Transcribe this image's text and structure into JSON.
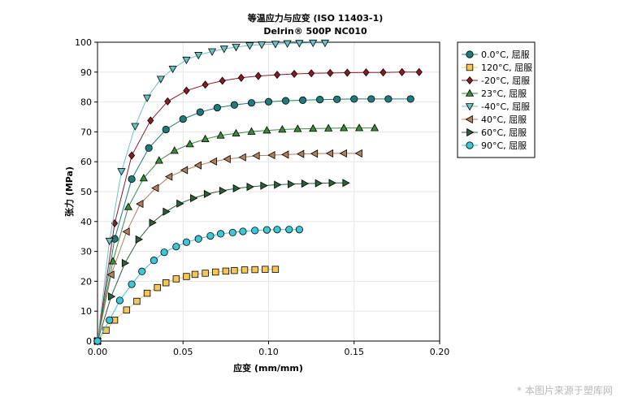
{
  "chart_data": {
    "type": "scatter",
    "title": "等温应力与应变 (ISO 11403-1)",
    "subtitle": "Delrin® 500P NC010",
    "xlabel": "应变 (mm/mm)",
    "ylabel": "张力 (MPa)",
    "xlim": [
      0,
      0.2
    ],
    "ylim": [
      0,
      100
    ],
    "xticks": [
      "0.00",
      "0.05",
      "0.10",
      "0.15",
      "0.20"
    ],
    "yticks": [
      "0",
      "10",
      "20",
      "30",
      "40",
      "50",
      "60",
      "70",
      "80",
      "90",
      "100"
    ],
    "grid": true,
    "legend_position": "right",
    "series": [
      {
        "name": "0.0°C, 屈服",
        "color": "#1f7a7a",
        "marker": "circle",
        "x": [
          0,
          0.01,
          0.02,
          0.03,
          0.04,
          0.05,
          0.06,
          0.07,
          0.08,
          0.09,
          0.1,
          0.11,
          0.12,
          0.13,
          0.14,
          0.15,
          0.16,
          0.17,
          0.183
        ],
        "y": [
          0,
          34.2,
          54.2,
          64.6,
          70.8,
          74.3,
          76.6,
          78.1,
          79.0,
          79.7,
          80.1,
          80.4,
          80.6,
          80.8,
          80.9,
          81.0,
          81.0,
          81.0,
          81.0
        ]
      },
      {
        "name": "120°C, 屈服",
        "color": "#f5c75a",
        "marker": "square",
        "x": [
          0,
          0.005,
          0.01,
          0.017,
          0.023,
          0.029,
          0.035,
          0.04,
          0.046,
          0.052,
          0.057,
          0.063,
          0.069,
          0.075,
          0.08,
          0.086,
          0.092,
          0.098,
          0.104
        ],
        "y": [
          0,
          3.6,
          7.0,
          10.4,
          13.3,
          16.0,
          17.9,
          19.5,
          20.8,
          21.6,
          22.3,
          22.7,
          23.1,
          23.4,
          23.6,
          23.8,
          23.9,
          24.0,
          24.0
        ]
      },
      {
        "name": "-20°C, 屈服",
        "color": "#8a1a2a",
        "marker": "diamond",
        "x": [
          0,
          0.01,
          0.02,
          0.031,
          0.041,
          0.052,
          0.063,
          0.073,
          0.084,
          0.094,
          0.105,
          0.115,
          0.125,
          0.136,
          0.146,
          0.157,
          0.167,
          0.178,
          0.188
        ],
        "y": [
          0,
          39.4,
          62.1,
          73.8,
          80.2,
          83.8,
          85.8,
          87.1,
          88.1,
          88.7,
          89.1,
          89.4,
          89.6,
          89.7,
          89.8,
          89.9,
          89.9,
          90.0,
          90.0
        ]
      },
      {
        "name": "23°C, 屈服",
        "color": "#3b8b3b",
        "marker": "triangle-up",
        "x": [
          0,
          0.009,
          0.018,
          0.027,
          0.036,
          0.045,
          0.054,
          0.063,
          0.072,
          0.081,
          0.09,
          0.099,
          0.108,
          0.117,
          0.126,
          0.135,
          0.144,
          0.153,
          0.162
        ],
        "y": [
          0,
          26.7,
          44.9,
          54.5,
          60.4,
          63.7,
          65.9,
          67.6,
          68.8,
          69.5,
          70.1,
          70.5,
          70.8,
          71.0,
          71.1,
          71.2,
          71.3,
          71.3,
          71.3
        ]
      },
      {
        "name": "-40°C, 屈服",
        "color": "#6cc2c2",
        "marker": "triangle-down",
        "x": [
          0,
          0.007,
          0.014,
          0.022,
          0.029,
          0.037,
          0.044,
          0.052,
          0.059,
          0.067,
          0.074,
          0.081,
          0.089,
          0.096,
          0.104,
          0.111,
          0.118,
          0.126,
          0.133
        ],
        "y": [
          0,
          33.5,
          56.8,
          71.9,
          81.4,
          87.7,
          91.1,
          94.1,
          95.7,
          96.9,
          97.8,
          98.4,
          98.9,
          99.2,
          99.4,
          99.6,
          99.7,
          99.8,
          99.8
        ]
      },
      {
        "name": "40°C, 屈服",
        "color": "#b3805a",
        "marker": "triangle-left",
        "x": [
          0,
          0.008,
          0.017,
          0.025,
          0.034,
          0.042,
          0.051,
          0.059,
          0.068,
          0.076,
          0.085,
          0.093,
          0.102,
          0.11,
          0.119,
          0.127,
          0.136,
          0.144,
          0.153
        ],
        "y": [
          0,
          22.2,
          36.6,
          45.9,
          51.2,
          55.0,
          57.2,
          58.8,
          60.1,
          60.9,
          61.5,
          62.0,
          62.2,
          62.4,
          62.6,
          62.7,
          62.8,
          62.8,
          62.8
        ]
      },
      {
        "name": "60°C, 屈服",
        "color": "#2d5e3e",
        "marker": "triangle-right",
        "x": [
          0,
          0.008,
          0.016,
          0.024,
          0.032,
          0.04,
          0.048,
          0.056,
          0.064,
          0.073,
          0.081,
          0.089,
          0.097,
          0.105,
          0.113,
          0.121,
          0.129,
          0.137,
          0.145
        ],
        "y": [
          0,
          14.9,
          26.1,
          34.0,
          39.6,
          43.3,
          46.0,
          47.8,
          49.2,
          50.3,
          51.1,
          51.6,
          52.0,
          52.3,
          52.5,
          52.7,
          52.8,
          52.9,
          52.9
        ]
      },
      {
        "name": "90°C, 屈服",
        "color": "#3cc6d6",
        "marker": "circle",
        "x": [
          0,
          0.007,
          0.013,
          0.02,
          0.026,
          0.033,
          0.039,
          0.046,
          0.052,
          0.059,
          0.066,
          0.072,
          0.079,
          0.085,
          0.092,
          0.099,
          0.105,
          0.112,
          0.118
        ],
        "y": [
          0,
          7.0,
          13.6,
          19.0,
          23.3,
          27.0,
          29.7,
          31.6,
          33.1,
          34.2,
          35.2,
          35.9,
          36.3,
          36.7,
          37.0,
          37.2,
          37.3,
          37.3,
          37.3
        ]
      }
    ]
  },
  "watermark": "* 本图片来源于塑库网"
}
